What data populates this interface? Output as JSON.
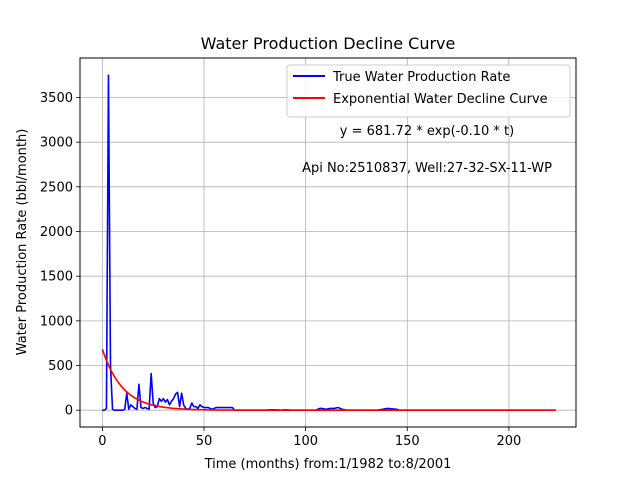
{
  "chart_data": {
    "type": "line",
    "title": "Water Production Decline Curve",
    "xlabel": "Time (months) from:1/1982 to:8/2001",
    "ylabel": "Water Production Rate (bbl/month)",
    "xlim": [
      -11,
      233
    ],
    "ylim": [
      -188,
      3942
    ],
    "xticks": [
      0,
      50,
      100,
      150,
      200
    ],
    "yticks": [
      0,
      500,
      1000,
      1500,
      2000,
      2500,
      3000,
      3500
    ],
    "grid": true,
    "legend_position": "upper right",
    "annotations": [
      "y = 681.72 * exp(-0.10 * t)",
      "Api No:2510837, Well:27-32-SX-11-WP"
    ],
    "series": [
      {
        "name": "True Water Production Rate",
        "color": "#0000ff",
        "x": [
          0,
          1,
          2,
          3,
          4,
          5,
          6,
          7,
          8,
          9,
          10,
          11,
          12,
          13,
          14,
          15,
          16,
          17,
          18,
          19,
          20,
          21,
          22,
          23,
          24,
          25,
          26,
          27,
          28,
          29,
          30,
          31,
          32,
          33,
          34,
          35,
          36,
          37,
          38,
          39,
          40,
          41,
          42,
          43,
          44,
          45,
          46,
          47,
          48,
          49,
          50,
          52,
          54,
          56,
          57,
          58,
          60,
          62,
          64,
          65,
          66,
          70,
          75,
          80,
          83,
          85,
          88,
          90,
          93,
          95,
          100,
          105,
          107,
          108,
          110,
          112,
          114,
          116,
          117,
          118,
          120,
          125,
          130,
          135,
          138,
          140,
          145,
          146,
          150,
          160,
          170,
          180,
          190,
          200,
          210,
          223
        ],
        "values": [
          0,
          0,
          20,
          3750,
          500,
          10,
          0,
          0,
          0,
          0,
          0,
          10,
          190,
          10,
          60,
          40,
          20,
          10,
          290,
          30,
          20,
          30,
          20,
          10,
          410,
          80,
          30,
          40,
          130,
          100,
          130,
          90,
          120,
          60,
          100,
          130,
          180,
          200,
          40,
          190,
          60,
          20,
          10,
          20,
          80,
          40,
          40,
          20,
          60,
          40,
          30,
          30,
          10,
          30,
          30,
          30,
          30,
          30,
          30,
          0,
          0,
          0,
          0,
          0,
          5,
          5,
          0,
          5,
          0,
          0,
          0,
          0,
          20,
          20,
          10,
          20,
          20,
          30,
          20,
          10,
          0,
          0,
          0,
          0,
          10,
          20,
          10,
          0,
          0,
          0,
          0,
          0,
          0,
          0,
          0,
          0
        ]
      },
      {
        "name": "Exponential Water Decline Curve",
        "color": "#ff0000",
        "model": {
          "a": 681.72,
          "b": -0.1,
          "x_start": 0,
          "x_end": 223
        }
      }
    ]
  }
}
